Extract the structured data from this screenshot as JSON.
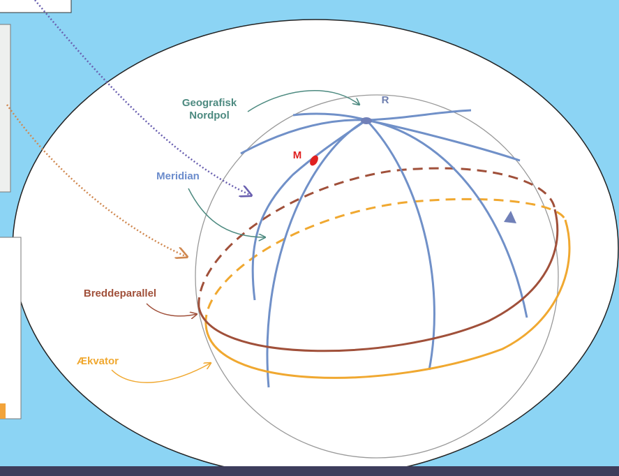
{
  "labels": {
    "north_pole": [
      "Geografisk",
      "Nordpol"
    ],
    "r": "R",
    "m": "M",
    "meridian": "Meridian",
    "parallel": "Breddeparallel",
    "equator": "Ækvator"
  }
}
